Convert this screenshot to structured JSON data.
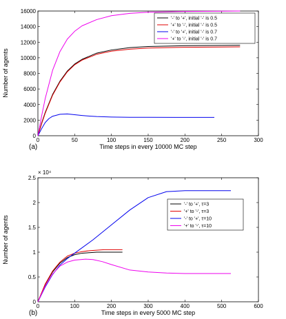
{
  "chart_data": [
    {
      "type": "line",
      "panel_label": "(a)",
      "xlabel": "Time steps in every 10000 MC step",
      "ylabel": "Number of agents",
      "xlim": [
        0,
        300
      ],
      "ylim": [
        0,
        16000
      ],
      "xticks": [
        "0",
        "50",
        "100",
        "150",
        "200",
        "250",
        "300"
      ],
      "yticks": [
        "0",
        "2000",
        "4000",
        "6000",
        "8000",
        "10000",
        "12000",
        "14000",
        "16000"
      ],
      "legend_position": "top-right",
      "grid": false,
      "series": [
        {
          "name": "'-' to '+', initial '-' is 0.5",
          "color": "#000000",
          "x": [
            0,
            5,
            10,
            20,
            30,
            40,
            50,
            60,
            80,
            100,
            125,
            150,
            200,
            250,
            275
          ],
          "y": [
            0,
            1600,
            3000,
            5300,
            7000,
            8300,
            9200,
            9800,
            10600,
            11000,
            11300,
            11450,
            11550,
            11580,
            11600
          ]
        },
        {
          "name": "'+' to '-', initial '-' is 0.5",
          "color": "#e00000",
          "x": [
            0,
            5,
            10,
            20,
            30,
            40,
            50,
            60,
            80,
            100,
            125,
            150,
            200,
            250,
            275
          ],
          "y": [
            0,
            1500,
            2900,
            5200,
            6900,
            8200,
            9100,
            9700,
            10450,
            10850,
            11100,
            11250,
            11350,
            11380,
            11400
          ]
        },
        {
          "name": "'-' to '+', initial '-' is 0.7",
          "color": "#0000ee",
          "x": [
            0,
            5,
            10,
            15,
            20,
            30,
            40,
            50,
            60,
            70,
            80,
            100,
            125,
            150,
            200,
            240
          ],
          "y": [
            0,
            900,
            1700,
            2200,
            2500,
            2750,
            2800,
            2700,
            2600,
            2520,
            2460,
            2400,
            2370,
            2360,
            2350,
            2350
          ]
        },
        {
          "name": "'+' to '-', initial '-' is 0.7",
          "color": "#ee00ee",
          "x": [
            0,
            5,
            10,
            20,
            30,
            40,
            50,
            60,
            80,
            100,
            125,
            150,
            200,
            250,
            275
          ],
          "y": [
            0,
            2500,
            4800,
            8400,
            10800,
            12400,
            13400,
            14100,
            14900,
            15400,
            15700,
            15850,
            15950,
            15980,
            16000
          ]
        }
      ]
    },
    {
      "type": "line",
      "panel_label": "(b)",
      "xlabel": "Time steps in every 5000 MC step",
      "ylabel": "Number of agents",
      "multiplier": "× 10⁴",
      "xlim": [
        0,
        600
      ],
      "ylim": [
        0,
        2.5
      ],
      "xticks": [
        "0",
        "100",
        "200",
        "300",
        "400",
        "500",
        "600"
      ],
      "yticks": [
        "0",
        "0.5",
        "1",
        "1.5",
        "2",
        "2.5"
      ],
      "legend_position": "right",
      "grid": false,
      "series": [
        {
          "name": "'-' to '+', τ=3",
          "color": "#000000",
          "x": [
            0,
            20,
            40,
            60,
            80,
            100,
            120,
            140,
            160,
            180,
            200,
            230
          ],
          "y": [
            0,
            0.35,
            0.6,
            0.78,
            0.89,
            0.95,
            0.98,
            0.99,
            1.0,
            1.0,
            1.0,
            1.0
          ]
        },
        {
          "name": "'+' to '-', τ=3",
          "color": "#e00000",
          "x": [
            0,
            20,
            40,
            60,
            80,
            100,
            120,
            140,
            160,
            180,
            200,
            230
          ],
          "y": [
            0,
            0.36,
            0.62,
            0.8,
            0.92,
            0.98,
            1.01,
            1.03,
            1.04,
            1.05,
            1.05,
            1.05
          ]
        },
        {
          "name": "'-' to '+', τ=10",
          "color": "#0000ee",
          "x": [
            0,
            20,
            40,
            60,
            80,
            100,
            150,
            200,
            250,
            300,
            350,
            400,
            450,
            525
          ],
          "y": [
            0,
            0.3,
            0.55,
            0.74,
            0.87,
            0.98,
            1.25,
            1.55,
            1.85,
            2.1,
            2.22,
            2.24,
            2.24,
            2.24
          ]
        },
        {
          "name": "'+' to '-', τ=10",
          "color": "#ee00ee",
          "x": [
            0,
            20,
            40,
            60,
            80,
            100,
            130,
            150,
            175,
            200,
            250,
            300,
            350,
            400,
            450,
            525
          ],
          "y": [
            0,
            0.32,
            0.56,
            0.72,
            0.8,
            0.84,
            0.86,
            0.85,
            0.81,
            0.75,
            0.64,
            0.6,
            0.58,
            0.57,
            0.57,
            0.57
          ]
        }
      ]
    }
  ]
}
